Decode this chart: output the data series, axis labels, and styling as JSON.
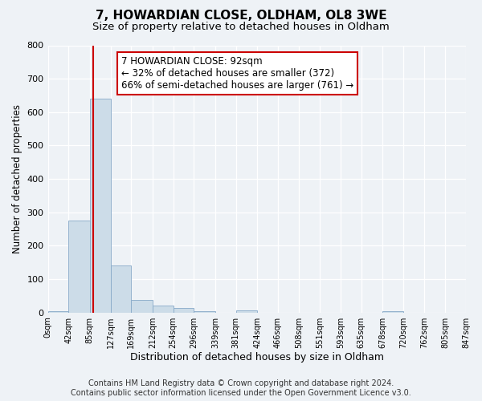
{
  "title1": "7, HOWARDIAN CLOSE, OLDHAM, OL8 3WE",
  "title2": "Size of property relative to detached houses in Oldham",
  "xlabel": "Distribution of detached houses by size in Oldham",
  "ylabel": "Number of detached properties",
  "bin_edges": [
    0,
    42,
    85,
    127,
    169,
    212,
    254,
    296,
    339,
    381,
    424,
    466,
    508,
    551,
    593,
    635,
    678,
    720,
    762,
    805,
    847
  ],
  "bin_counts": [
    5,
    275,
    640,
    140,
    38,
    20,
    14,
    5,
    0,
    7,
    0,
    0,
    0,
    0,
    0,
    0,
    5,
    0,
    0,
    0
  ],
  "bar_color": "#ccdce8",
  "bar_edge_color": "#88aac8",
  "property_size": 92,
  "red_line_color": "#cc0000",
  "annotation_line1": "7 HOWARDIAN CLOSE: 92sqm",
  "annotation_line2": "← 32% of detached houses are smaller (372)",
  "annotation_line3": "66% of semi-detached houses are larger (761) →",
  "annotation_box_color": "#ffffff",
  "annotation_box_edge_color": "#cc0000",
  "ylim": [
    0,
    800
  ],
  "yticks": [
    0,
    100,
    200,
    300,
    400,
    500,
    600,
    700,
    800
  ],
  "footer_line1": "Contains HM Land Registry data © Crown copyright and database right 2024.",
  "footer_line2": "Contains public sector information licensed under the Open Government Licence v3.0.",
  "bg_color": "#eef2f6",
  "plot_bg_color": "#eef2f6",
  "grid_color": "#ffffff",
  "title1_fontsize": 11,
  "title2_fontsize": 9.5,
  "annotation_fontsize": 8.5,
  "footer_fontsize": 7,
  "tick_label_fontsize": 7,
  "ylabel_fontsize": 8.5,
  "xlabel_fontsize": 9,
  "tick_labels": [
    "0sqm",
    "42sqm",
    "85sqm",
    "127sqm",
    "169sqm",
    "212sqm",
    "254sqm",
    "296sqm",
    "339sqm",
    "381sqm",
    "424sqm",
    "466sqm",
    "508sqm",
    "551sqm",
    "593sqm",
    "635sqm",
    "678sqm",
    "720sqm",
    "762sqm",
    "805sqm",
    "847sqm"
  ]
}
